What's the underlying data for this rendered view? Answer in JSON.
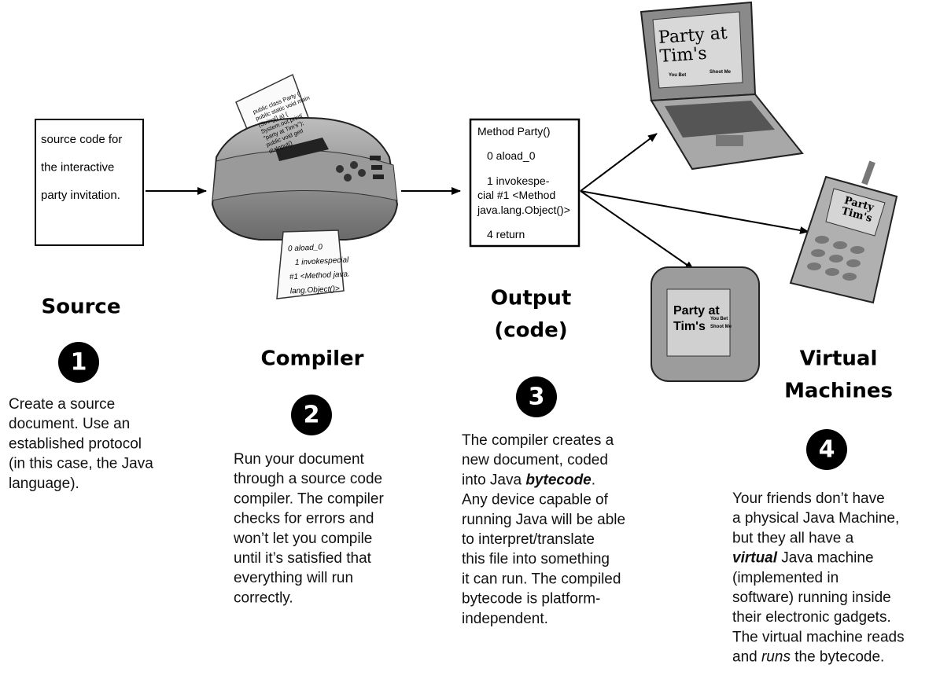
{
  "source_box": {
    "lines": [
      "source code for",
      "the interactive",
      "party invitation."
    ]
  },
  "compiler_paper": {
    "input_lines": [
      "public class Party {",
      "public static void main",
      "(String[] a) {",
      "System.out.print(",
      "\"party at Tim's\");",
      "public void getI",
      "dialnput()"
    ],
    "output_lines": [
      "0 aload_0",
      "1 invokespecial",
      "#1 <Method java.",
      "lang.Object()>"
    ]
  },
  "output_box": {
    "lines": [
      "Method Party()",
      "0 aload_0",
      "1 invokespe-",
      "cial #1 <Method",
      "java.lang.Object()>",
      "4 return"
    ]
  },
  "devices": {
    "laptop": {
      "screen": [
        "Party at",
        "Tim's"
      ],
      "buttons": [
        "You Bet",
        "Shoot Me"
      ]
    },
    "phone": {
      "screen": [
        "Party",
        "Tim's"
      ]
    },
    "pda": {
      "screen": [
        "Party at",
        "Tim's"
      ],
      "buttons": [
        "You Bet",
        "Shoot Me"
      ]
    }
  },
  "steps": [
    {
      "title": [
        "Source"
      ],
      "number": "1",
      "description": [
        "Create a source",
        "document. Use an",
        "established protocol",
        "(in this case, the Java",
        "language)."
      ]
    },
    {
      "title": [
        "Compiler"
      ],
      "number": "2",
      "description": [
        "Run your document",
        "through a source code",
        "compiler. The compiler",
        "checks for errors and",
        "won’t let you compile",
        "until it’s satisfied that",
        "everything will run",
        "correctly."
      ]
    },
    {
      "title": [
        "Output",
        "(code)"
      ],
      "number": "3",
      "description": [
        "The compiler creates a",
        "new document, coded",
        [
          {
            "text": "into Java "
          },
          {
            "text": "bytecode",
            "emphasis": "bold-italic"
          },
          {
            "text": "."
          }
        ],
        "Any device capable of",
        "running Java will be able",
        "to interpret/translate",
        "this file into something",
        "it can run. The compiled",
        "bytecode is platform-",
        "independent."
      ]
    },
    {
      "title": [
        "Virtual",
        "Machines"
      ],
      "number": "4",
      "description": [
        "Your friends don’t have",
        "a physical Java Machine,",
        "but they all have a",
        [
          {
            "text": "virtual",
            "emphasis": "bold-italic"
          },
          {
            "text": " Java machine"
          }
        ],
        "(implemented in",
        "software) running inside",
        "their electronic gadgets.",
        "The virtual machine reads",
        [
          {
            "text": "and "
          },
          {
            "text": "runs",
            "emphasis": "italic"
          },
          {
            "text": " the bytecode."
          }
        ]
      ]
    }
  ]
}
